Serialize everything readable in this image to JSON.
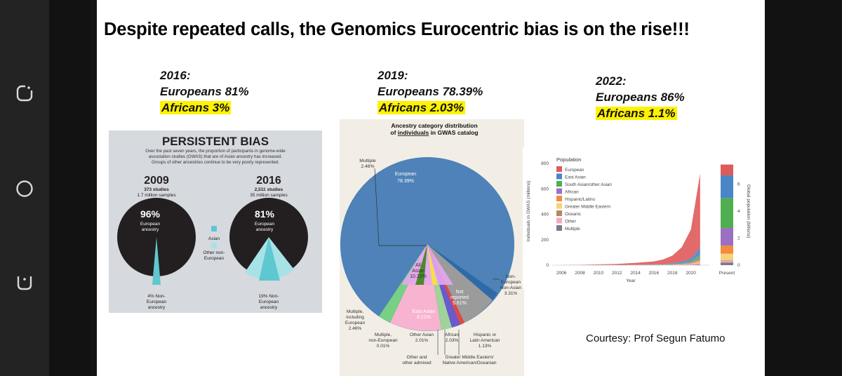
{
  "slide_title": "Despite repeated calls, the Genomics Eurocentric bias is on the rise!!!",
  "stats": [
    {
      "year": "2016:",
      "europeans": "Europeans 81%",
      "africans": "Africans 3%"
    },
    {
      "year": "2019:",
      "europeans": "Europeans 78.39%",
      "africans": "Africans 2.03%"
    },
    {
      "year": "2022:",
      "europeans": "Europeans 86%",
      "africans": "Africans 1.1%"
    }
  ],
  "courtesy": "Courtesy: Prof Segun Fatumo",
  "persistent_bias": {
    "title": "PERSISTENT BIAS",
    "description_lines": [
      "Over the past seven years, the proportion of participants in genome-wide",
      "association studies (GWAS) that are of Asian ancestry has increased.",
      "Groups of other ancestries continue to be very poorly represented."
    ],
    "left": {
      "year": "2009",
      "studies": "373 studies",
      "samples": "1.7 million samples",
      "pct": "96%",
      "label1": "European",
      "label2": "ancestry",
      "foot1": "4% Non-",
      "foot2": "European",
      "foot3": "ancestry"
    },
    "right": {
      "year": "2016",
      "studies": "2,511 studies",
      "samples": "35 million samples",
      "pct": "81%",
      "label1": "European",
      "label2": "ancestry",
      "foot1": "19% Non-",
      "foot2": "European",
      "foot3": "ancestry"
    },
    "legend": {
      "asian": "Asian",
      "other1": "Other non-",
      "other2": "European"
    },
    "colors": {
      "dark": "#231f20",
      "cyan": "#5fc7cf",
      "light": "#a6e2e6"
    }
  },
  "gwas_pie": {
    "title_line1": "Ancestry category distribution",
    "title_line2_pre": "of ",
    "title_line2_u": "individuals",
    "title_line2_post": " in GWAS catalog",
    "labels": {
      "multiple": [
        "Multiple",
        "2.48%"
      ],
      "european": [
        "European",
        "78.39%"
      ],
      "all_asian": [
        "All",
        "Asian",
        "10.22%"
      ],
      "not_reported": [
        "Not",
        "reported",
        "5.61%"
      ],
      "non_european": [
        "Non-",
        "European",
        "Non-Asian",
        "3.31%"
      ],
      "east_asian": [
        "East Asian",
        "8.21%"
      ],
      "multiple_incl": [
        "Multiple,",
        "including",
        "European",
        "2.46%"
      ],
      "multiple_non": [
        "Multiple,",
        "non-European",
        "0.01%"
      ],
      "other_asian": [
        "Other Asian",
        "2.01%"
      ],
      "african": [
        "African",
        "2.03%"
      ],
      "hispanic": [
        "Hispanic or",
        "Latin American",
        "1.13%"
      ],
      "other_admixed": [
        "Other and",
        "other admixed"
      ],
      "gme": [
        "Greater Middle Eastern/",
        "Native American/Oceanian"
      ]
    }
  },
  "chart_data": {
    "type": "area",
    "title": "",
    "xlabel": "Year",
    "ylabel": "Individuals in GWAS (millions)",
    "ylabel_right": "Global population (billions)",
    "x_ticks": [
      "2006",
      "2008",
      "2010",
      "2012",
      "2014",
      "2016",
      "2018",
      "2020",
      "Present"
    ],
    "y_ticks": [
      "0",
      "200",
      "400",
      "600",
      "800"
    ],
    "y_right_ticks": [
      "0",
      "2",
      "4",
      "6"
    ],
    "ylim": [
      0,
      850
    ],
    "legend_title": "Population",
    "legend_position": "top-left",
    "series": [
      {
        "name": "European",
        "color": "#e05a5a"
      },
      {
        "name": "East Asian",
        "color": "#4a86c6"
      },
      {
        "name": "South Asian/other Asian",
        "color": "#4fae4f"
      },
      {
        "name": "African",
        "color": "#9c6fc2"
      },
      {
        "name": "Hispanic/Latino",
        "color": "#f28c3c"
      },
      {
        "name": "Greater Middle Eastern",
        "color": "#f6d27a"
      },
      {
        "name": "Oceanic",
        "color": "#b8875a"
      },
      {
        "name": "Other",
        "color": "#f2a9c8"
      },
      {
        "name": "Multiple",
        "color": "#7a7a8c"
      }
    ],
    "x": [
      2006,
      2008,
      2010,
      2012,
      2014,
      2016,
      2017,
      2018,
      2019,
      2020,
      2021
    ],
    "total_values": [
      1,
      3,
      6,
      10,
      18,
      30,
      45,
      75,
      140,
      280,
      720
    ],
    "present_population_billions": {
      "European": 0.8,
      "East Asian": 1.7,
      "South Asian/other Asian": 2.2,
      "African": 1.3,
      "Hispanic/Latino": 0.6,
      "Greater Middle Eastern": 0.5,
      "Oceanic": 0.05,
      "Other": 0.1,
      "Multiple": 0.2
    }
  }
}
